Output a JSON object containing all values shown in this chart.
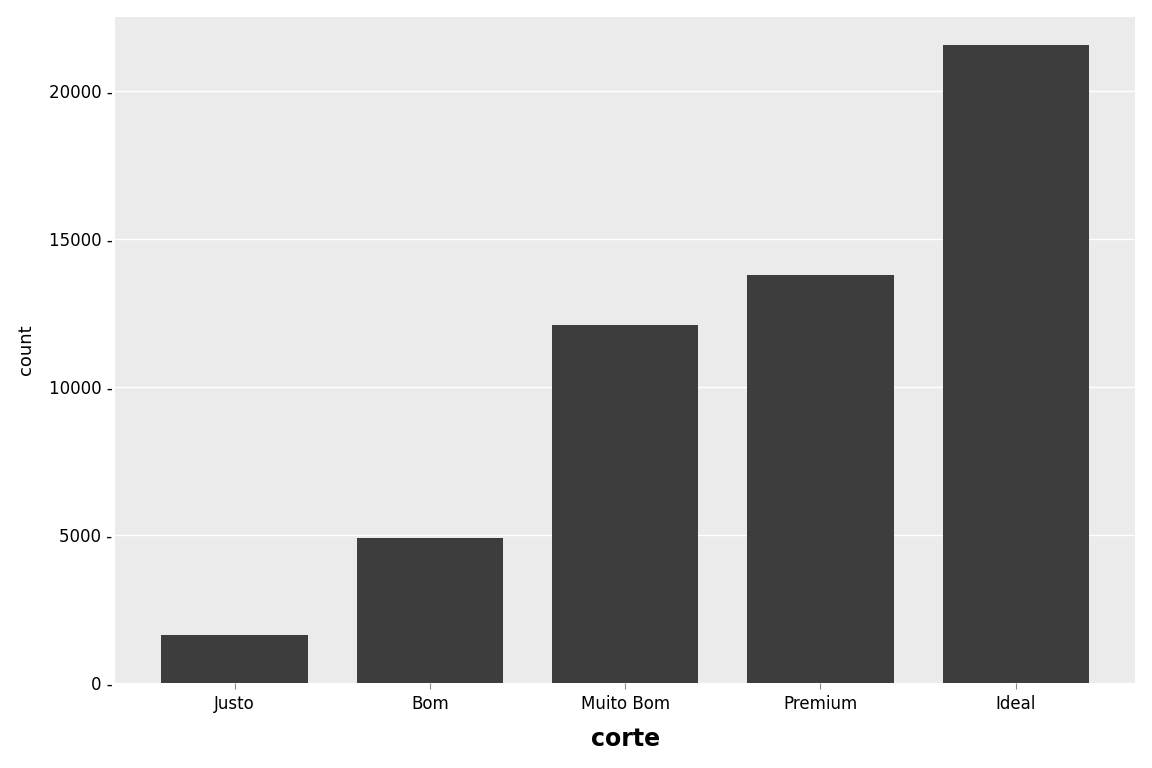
{
  "categories": [
    "Justo",
    "Bom",
    "Muito Bom",
    "Premium",
    "Ideal"
  ],
  "values": [
    1610,
    4906,
    12082,
    13791,
    21551
  ],
  "bar_color": "#3d3d3d",
  "figure_background": "#ffffff",
  "panel_background": "#ebebeb",
  "grid_color": "#ffffff",
  "xlabel": "corte",
  "ylabel": "count",
  "xlabel_fontsize": 17,
  "ylabel_fontsize": 13,
  "xtick_fontsize": 12,
  "ytick_fontsize": 12,
  "yticks": [
    0,
    5000,
    10000,
    15000,
    20000
  ],
  "ylim": [
    0,
    22500
  ],
  "bar_width": 0.75
}
